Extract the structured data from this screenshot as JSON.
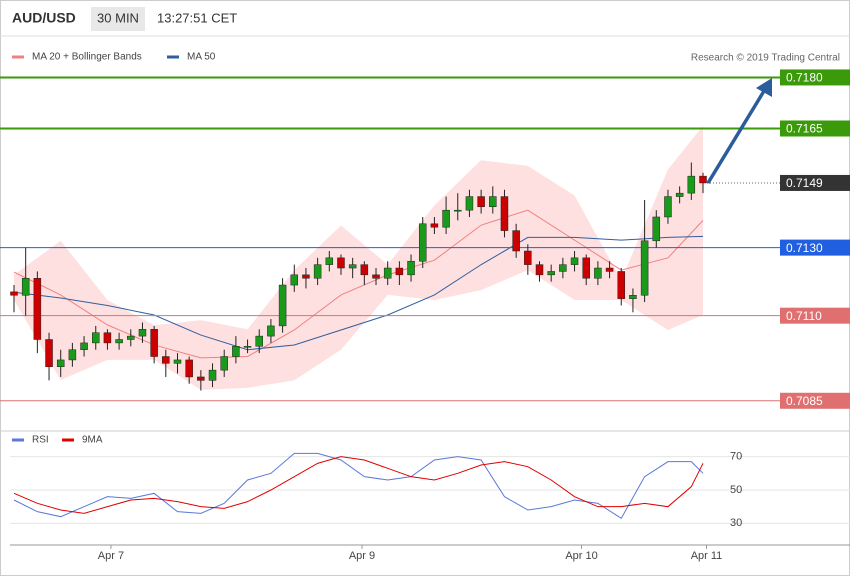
{
  "chart_data": {
    "type": "candlestick",
    "symbol": "AUD/USD",
    "interval": "30 MIN",
    "time": "13:27:51 CET",
    "legend": [
      {
        "name": "MA 20 + Bollinger Bands",
        "color": "#f08080"
      },
      {
        "name": "MA 50",
        "color": "#2f5f9e"
      }
    ],
    "credit": "Research © 2019 Trading Central",
    "ylim": [
      0.7077,
      0.7191
    ],
    "xlim": [
      0,
      59
    ],
    "xticks": [
      {
        "value": 8.3,
        "label": "Apr 7"
      },
      {
        "value": 29.8,
        "label": "Apr 9"
      },
      {
        "value": 48.6,
        "label": "Apr 10"
      },
      {
        "value": 59.3,
        "label": "Apr 11"
      }
    ],
    "levels": [
      {
        "value": 0.718,
        "label": "0.7180"
      },
      {
        "value": 0.7165,
        "label": "0.7165"
      },
      {
        "value": 0.7149,
        "label": "0.7149"
      },
      {
        "value": 0.713,
        "label": "0.7130"
      },
      {
        "value": 0.711,
        "label": "0.7110"
      },
      {
        "value": 0.7085,
        "label": "0.7085"
      }
    ],
    "level_colors": [
      "#3a9a0a",
      "#3a9a0a",
      "#333333",
      "#1f5fe0",
      "#e07070",
      "#e07070"
    ],
    "up_color": "#1a9a1a",
    "down_color": "#cc0000",
    "ohlc": {
      "open": [
        0.7117,
        0.7116,
        0.7121,
        0.7103,
        0.7095,
        0.7097,
        0.71,
        0.7102,
        0.7105,
        0.7102,
        0.7103,
        0.7104,
        0.7106,
        0.7098,
        0.7096,
        0.7097,
        0.7092,
        0.7091,
        0.7094,
        0.7098,
        0.7101,
        0.7101,
        0.7104,
        0.7107,
        0.7119,
        0.7122,
        0.7121,
        0.7125,
        0.7127,
        0.7124,
        0.7125,
        0.7122,
        0.7121,
        0.7124,
        0.7122,
        0.7126,
        0.7137,
        0.7136,
        0.7141,
        0.7141,
        0.7145,
        0.7142,
        0.7145,
        0.7135,
        0.7129,
        0.7125,
        0.7122,
        0.7123,
        0.7125,
        0.7127,
        0.7121,
        0.7124,
        0.7123,
        0.7115,
        0.7116,
        0.7132,
        0.7139,
        0.7145,
        0.7146,
        0.7151
      ],
      "high": [
        0.7119,
        0.713,
        0.7123,
        0.7105,
        0.71,
        0.7102,
        0.7104,
        0.7107,
        0.7106,
        0.7105,
        0.7106,
        0.7108,
        0.7107,
        0.71,
        0.7099,
        0.7098,
        0.7094,
        0.7096,
        0.71,
        0.7104,
        0.7103,
        0.7106,
        0.7109,
        0.7121,
        0.7125,
        0.7124,
        0.7127,
        0.7129,
        0.7128,
        0.7127,
        0.7126,
        0.7124,
        0.7126,
        0.7126,
        0.7128,
        0.7139,
        0.7139,
        0.7145,
        0.7146,
        0.7147,
        0.7147,
        0.7148,
        0.7147,
        0.7137,
        0.7131,
        0.7126,
        0.7125,
        0.7127,
        0.7129,
        0.7128,
        0.7126,
        0.7126,
        0.7124,
        0.7118,
        0.7144,
        0.7141,
        0.7147,
        0.7148,
        0.7155,
        0.7152
      ],
      "low": [
        0.7111,
        0.711,
        0.7099,
        0.7091,
        0.7092,
        0.7095,
        0.7098,
        0.71,
        0.71,
        0.71,
        0.7101,
        0.7102,
        0.7096,
        0.7092,
        0.7093,
        0.709,
        0.7088,
        0.7089,
        0.7092,
        0.7096,
        0.7099,
        0.7099,
        0.7102,
        0.7105,
        0.7117,
        0.7118,
        0.7119,
        0.7123,
        0.7122,
        0.7121,
        0.7119,
        0.7119,
        0.7119,
        0.7119,
        0.712,
        0.7124,
        0.7134,
        0.7134,
        0.7138,
        0.7139,
        0.714,
        0.714,
        0.7133,
        0.7127,
        0.7122,
        0.712,
        0.712,
        0.7121,
        0.7123,
        0.7119,
        0.7119,
        0.7121,
        0.7113,
        0.7111,
        0.7114,
        0.713,
        0.7137,
        0.7143,
        0.7144,
        0.7146
      ],
      "close": [
        0.7116,
        0.7121,
        0.7103,
        0.7095,
        0.7097,
        0.71,
        0.7102,
        0.7105,
        0.7102,
        0.7103,
        0.7104,
        0.7106,
        0.7098,
        0.7096,
        0.7097,
        0.7092,
        0.7091,
        0.7094,
        0.7098,
        0.7101,
        0.7101,
        0.7104,
        0.7107,
        0.7119,
        0.7122,
        0.7121,
        0.7125,
        0.7127,
        0.7124,
        0.7125,
        0.7122,
        0.7121,
        0.7124,
        0.7122,
        0.7126,
        0.7137,
        0.7136,
        0.7141,
        0.7141,
        0.7145,
        0.7142,
        0.7145,
        0.7135,
        0.7129,
        0.7125,
        0.7122,
        0.7123,
        0.7125,
        0.7127,
        0.7121,
        0.7124,
        0.7123,
        0.7115,
        0.7116,
        0.7132,
        0.7139,
        0.7145,
        0.7146,
        0.7151,
        0.7149
      ]
    },
    "bands": {
      "x": [
        0,
        4,
        8,
        12,
        16,
        20,
        24,
        28,
        32,
        36,
        40,
        44,
        48,
        52,
        56,
        59
      ],
      "upper": [
        0.7122,
        0.7132,
        0.71146,
        0.71072,
        0.71087,
        0.7106,
        0.71234,
        0.71365,
        0.7125,
        0.71424,
        0.71557,
        0.7154,
        0.71453,
        0.71204,
        0.7153,
        0.71658
      ],
      "lower": [
        0.71146,
        0.70911,
        0.7097,
        0.7097,
        0.70882,
        0.70888,
        0.7091,
        0.71,
        0.71161,
        0.71146,
        0.71175,
        0.71234,
        0.71146,
        0.71146,
        0.71058,
        0.71102
      ],
      "ma20": [
        0.71228,
        0.71161,
        0.71073,
        0.71014,
        0.70976,
        0.7098,
        0.71058,
        0.71161,
        0.7122,
        0.71263,
        0.71366,
        0.7141,
        0.71322,
        0.71234,
        0.7127,
        0.7138
      ],
      "ma50": [
        0.71169,
        0.71152,
        0.7113,
        0.71102,
        0.71043,
        0.71,
        0.71014,
        0.71058,
        0.71102,
        0.71161,
        0.7125,
        0.7133,
        0.7133,
        0.71322,
        0.7133,
        0.71333
      ]
    },
    "rsi": {
      "legend": [
        {
          "name": "RSI",
          "color": "#5a78d8"
        },
        {
          "name": "9MA",
          "color": "#e00000"
        }
      ],
      "ylim": [
        17,
        80
      ],
      "yticks": [
        30,
        50,
        70
      ],
      "x": [
        0,
        2,
        4,
        6,
        8,
        10,
        12,
        14,
        16,
        18,
        20,
        22,
        24,
        26,
        28,
        30,
        32,
        34,
        36,
        38,
        40,
        42,
        44,
        46,
        48,
        50,
        52,
        54,
        56,
        58,
        59
      ],
      "rsi": [
        44,
        37,
        34,
        40,
        46,
        45,
        48,
        37,
        36,
        42,
        56,
        60,
        72,
        72,
        68,
        58,
        56,
        58,
        68,
        70,
        68,
        46,
        38,
        40,
        44,
        42,
        33,
        58,
        67,
        67,
        60
      ],
      "ma": [
        48,
        42,
        38,
        36,
        40,
        44,
        45,
        43,
        40,
        39,
        43,
        50,
        58,
        66,
        70,
        68,
        63,
        58,
        56,
        60,
        65,
        67,
        64,
        56,
        46,
        40,
        40,
        42,
        40,
        52,
        66
      ]
    }
  }
}
